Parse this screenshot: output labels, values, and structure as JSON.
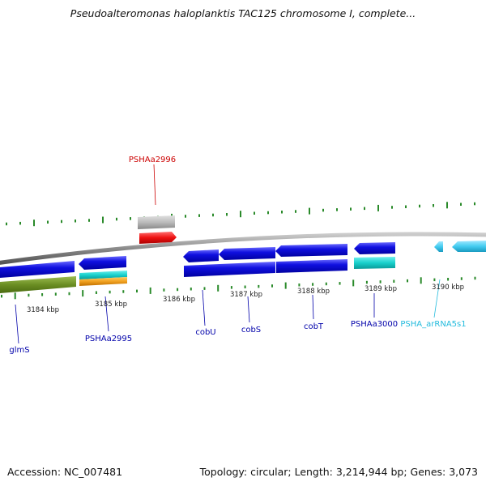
{
  "header": {
    "title": "Pseudoalteromonas haloplanktis TAC125 chromosome I, complete..."
  },
  "footer": {
    "accession": "Accession: NC_007481",
    "topology": "Topology: circular; Length: 3,214,944 bp; Genes: 3,073"
  },
  "ticks": [
    "3184 kbp",
    "3185 kbp",
    "3186 kbp",
    "3187 kbp",
    "3188 kbp",
    "3189 kbp",
    "3190 kbp"
  ],
  "genes": [
    {
      "label": "PSHAa2996",
      "color": "#cc0000"
    },
    {
      "label": "glmS",
      "color": "#0000aa"
    },
    {
      "label": "PSHAa2995",
      "color": "#0000aa"
    },
    {
      "label": "cobU",
      "color": "#0000aa"
    },
    {
      "label": "cobS",
      "color": "#0000aa"
    },
    {
      "label": "cobT",
      "color": "#0000aa"
    },
    {
      "label": "PSHAa3000",
      "color": "#0000aa"
    },
    {
      "label": "PSHA_arRNA5s1",
      "color": "#22bbdd"
    }
  ],
  "colors": {
    "backbone": "#8a8a8a",
    "cds_blue": "#1010e0",
    "green": "#6b8e23",
    "orange": "#f0a020",
    "cyan": "#18d0cc",
    "gray": "#bbbbbb",
    "red": "#ee1111",
    "light_blue": "#44ccf0",
    "tick_green": "#2a8a2a"
  }
}
